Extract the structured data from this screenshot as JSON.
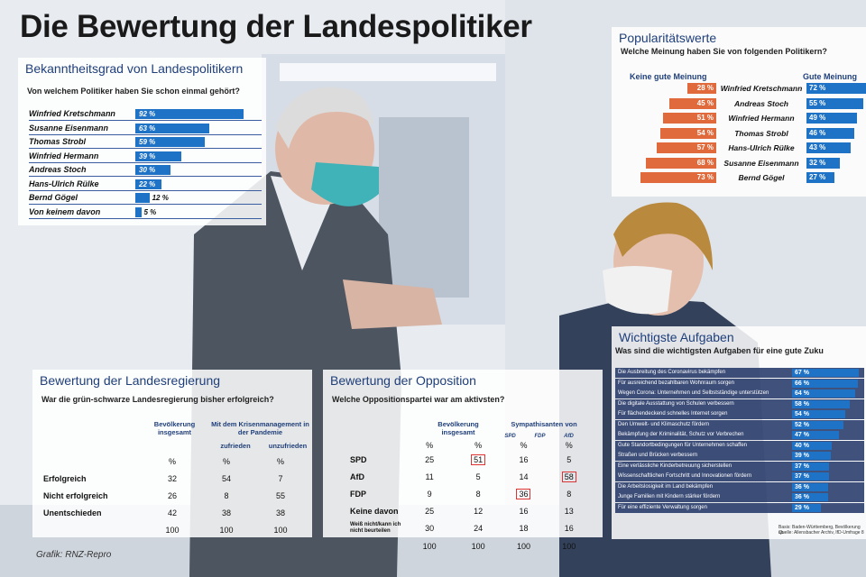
{
  "title": "Die Bewertung der Landespolitiker",
  "credit": "Grafik: RNZ-Repro",
  "chart_data": [
    {
      "type": "bar",
      "title": "Bekanntheitsgrad von Landespolitikern",
      "question": "Von welchem Politiker haben Sie schon einmal gehört?",
      "categories": [
        "Winfried Kretschmann",
        "Susanne Eisenmann",
        "Thomas Strobl",
        "Winfried Hermann",
        "Andreas Stoch",
        "Hans-Ulrich Rülke",
        "Bernd Gögel",
        "Von keinem davon"
      ],
      "values": [
        92,
        63,
        59,
        39,
        30,
        22,
        12,
        5
      ],
      "labels": [
        "92 %",
        "63 %",
        "59 %",
        "39 %",
        "30 %",
        "22 %",
        "12 %",
        "5 %"
      ],
      "xlim": [
        0,
        100
      ]
    },
    {
      "type": "bar",
      "title": "Popularitätswerte",
      "question": "Welche Meinung haben Sie von folgenden Politikern?",
      "left_header": "Keine gute Meinung",
      "right_header": "Gute Meinung",
      "categories": [
        "Winfried Kretschmann",
        "Andreas Stoch",
        "Winfried Hermann",
        "Thomas Strobl",
        "Hans-Ulrich Rülke",
        "Susanne Eisenmann",
        "Bernd Gögel"
      ],
      "series": [
        {
          "name": "Keine gute Meinung",
          "values": [
            28,
            45,
            51,
            54,
            57,
            68,
            73
          ],
          "labels": [
            "28 %",
            "45 %",
            "51 %",
            "54 %",
            "57 %",
            "68 %",
            "73 %"
          ]
        },
        {
          "name": "Gute Meinung",
          "values": [
            72,
            55,
            49,
            46,
            43,
            32,
            27
          ],
          "labels": [
            "72 %",
            "55 %",
            "49 %",
            "46 %",
            "43 %",
            "32 %",
            "27 %"
          ]
        }
      ]
    },
    {
      "type": "table",
      "title": "Bewertung der Landesregierung",
      "question": "War die grün-schwarze Landesregierung bisher erfolgreich?",
      "col_headers": [
        "Bevölkerung insgesamt",
        "Mit dem Krisenmanagement in der Pandemie"
      ],
      "sub_headers": [
        "zufrieden",
        "unzufrieden"
      ],
      "unit_row": [
        "%",
        "%",
        "%"
      ],
      "rows": [
        {
          "label": "Erfolgreich",
          "values": [
            "32",
            "54",
            "7"
          ]
        },
        {
          "label": "Nicht erfolgreich",
          "values": [
            "26",
            "8",
            "55"
          ]
        },
        {
          "label": "Unentschieden",
          "values": [
            "42",
            "38",
            "38"
          ]
        },
        {
          "label": "",
          "values": [
            "100",
            "100",
            "100"
          ]
        }
      ]
    },
    {
      "type": "table",
      "title": "Bewertung der Opposition",
      "question": "Welche Oppositionspartei war am aktivsten?",
      "col_headers": [
        "Bevölkerung insgesamt",
        "Sympathisanten von"
      ],
      "sub_headers": [
        "SPD",
        "FDP",
        "AfD"
      ],
      "unit_row": [
        "%",
        "%",
        "%",
        "%"
      ],
      "rows": [
        {
          "label": "SPD",
          "values": [
            "25",
            "51",
            "16",
            "5"
          ]
        },
        {
          "label": "AfD",
          "values": [
            "11",
            "5",
            "14",
            "58"
          ]
        },
        {
          "label": "FDP",
          "values": [
            "9",
            "8",
            "36",
            "8"
          ]
        },
        {
          "label": "Keine davon",
          "values": [
            "25",
            "12",
            "16",
            "13"
          ]
        },
        {
          "label": "Weiß nicht/kann ich nicht beurteilen",
          "values": [
            "30",
            "24",
            "18",
            "16"
          ]
        },
        {
          "label": "",
          "values": [
            "100",
            "100",
            "100",
            "100"
          ]
        }
      ]
    },
    {
      "type": "bar",
      "title": "Wichtigste Aufgaben",
      "question": "Was sind die wichtigsten Aufgaben für eine gute Zuku",
      "categories": [
        "Die Ausbreitung des Coronavirus bekämpfen",
        "Für ausreichend bezahlbaren Wohnraum sorgen",
        "Wegen Corona: Unternehmen und Selbstständige unterstützen",
        "Die digitale Ausstattung von Schulen verbessern",
        "Für flächendeckend schnelles Internet sorgen",
        "Den Umwelt- und Klimaschutz fördern",
        "Bekämpfung der Kriminalität, Schutz vor Verbrechen",
        "Gute Standortbedingungen für Unternehmen schaffen",
        "Straßen und Brücken verbessern",
        "Eine verlässliche Kinderbetreuung sicherstellen",
        "Wissenschaftlichen Fortschritt und Innovationen fördern",
        "Die Arbeitslosigkeit im Land bekämpfen",
        "Junge Familien mit Kindern stärker fördern",
        "Für eine effiziente Verwaltung sorgen"
      ],
      "values": [
        67,
        66,
        64,
        58,
        54,
        52,
        47,
        40,
        39,
        37,
        37,
        36,
        36,
        29
      ],
      "labels": [
        "67 %",
        "66 %",
        "64 %",
        "58 %",
        "54 %",
        "52 %",
        "47 %",
        "40 %",
        "39 %",
        "37 %",
        "37 %",
        "36 %",
        "36 %",
        "29 %"
      ],
      "source": "Basis: Baden-Württemberg, Bevölkerung ab",
      "source2": "Quelle: Allensbacher Archiv, IfD-Umfrage 8"
    }
  ],
  "colors": {
    "blue": "#1f73c7",
    "orange": "#e06a3b",
    "header": "#1f3f7a"
  }
}
